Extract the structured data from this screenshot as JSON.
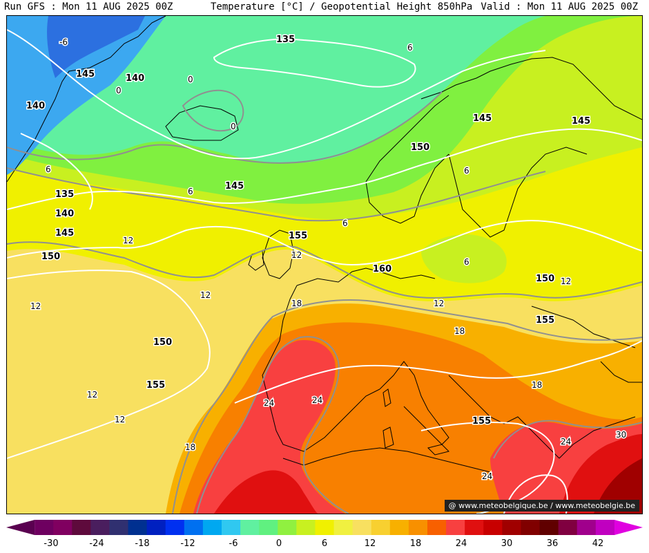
{
  "header": {
    "run": "Run GFS : Mon 11 AUG 2025 00Z",
    "title": "Temperature [°C] / Geopotential Height 850hPa",
    "valid": "Valid : Mon 11 AUG 2025 00Z"
  },
  "watermark": "@ www.meteobelgique.be / www.meteobelgie.be",
  "colorbar": {
    "ticks": [
      "-30",
      "-24",
      "-18",
      "-12",
      "-6",
      "0",
      "6",
      "12",
      "18",
      "24",
      "30",
      "36",
      "42"
    ],
    "colors": [
      "#5a0050",
      "#6e0060",
      "#800060",
      "#5e0a3c",
      "#4a1e5e",
      "#303070",
      "#003090",
      "#0020c0",
      "#0030f0",
      "#0070f0",
      "#00a8f0",
      "#30c8f0",
      "#60f0a0",
      "#60f080",
      "#90f040",
      "#c8f020",
      "#f0f000",
      "#f0f040",
      "#f8e060",
      "#f8d030",
      "#f8b000",
      "#f89000",
      "#f86000",
      "#f84040",
      "#e01010",
      "#c80000",
      "#a00000",
      "#800000",
      "#600000",
      "#800040",
      "#a0008c",
      "#c000c0",
      "#e000e0"
    ]
  },
  "map": {
    "colors": {
      "t_minus6": "#2c70e0",
      "t_minus3": "#3ca8f0",
      "t_0": "#60f0a0",
      "t_6": "#80f040",
      "t_9": "#c8f020",
      "t_12": "#f0f000",
      "t_15": "#f8e060",
      "t_18": "#f8b000",
      "t_21": "#f88000",
      "t_24": "#f84040",
      "t_27": "#e01010",
      "t_30": "#a00000",
      "coast": "#000000",
      "isotherm": "#909090",
      "isoheight": "#ffffff"
    },
    "height_labels": [
      "135",
      "145",
      "140",
      "140",
      "145",
      "150",
      "145",
      "145",
      "135",
      "140",
      "145",
      "150",
      "155",
      "160",
      "150",
      "155",
      "150",
      "155",
      "155"
    ],
    "temp_labels": [
      "-6",
      "0",
      "0",
      "0",
      "6",
      "6",
      "6",
      "6",
      "6",
      "6",
      "12",
      "12",
      "12",
      "12",
      "12",
      "12",
      "12",
      "12",
      "18",
      "18",
      "18",
      "18",
      "24",
      "24",
      "24",
      "24",
      "30"
    ]
  }
}
